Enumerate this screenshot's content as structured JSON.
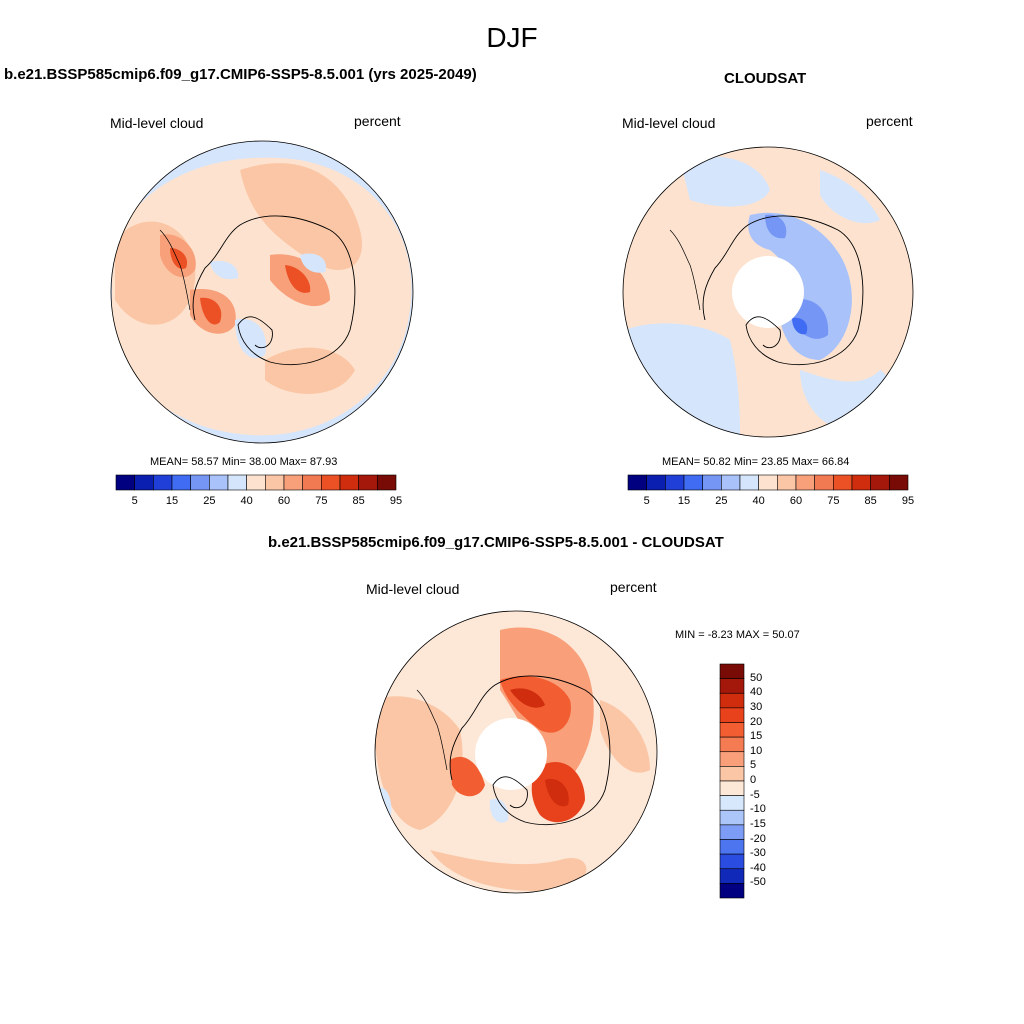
{
  "figure": {
    "title": "DJF"
  },
  "panels": [
    {
      "title": "b.e21.BSSP585cmip6.f09_g17.CMIP6-SSP5-8.5.001 (yrs 2025-2049)",
      "left_label": "Mid-level cloud",
      "right_label": "percent",
      "stats": "MEAN=  58.57  Min=  38.00  Max=  87.93"
    },
    {
      "title": "CLOUDSAT",
      "left_label": "Mid-level cloud",
      "right_label": "percent",
      "stats": "MEAN=  50.82  Min=  23.85  Max=  66.84"
    },
    {
      "title": "b.e21.BSSP585cmip6.f09_g17.CMIP6-SSP5-8.5.001 - CLOUDSAT",
      "left_label": "Mid-level cloud",
      "right_label": "percent",
      "stats": "MIN =  -8.23 MAX =  50.07"
    }
  ],
  "colorbar_abs": {
    "labels": [
      "5",
      "15",
      "25",
      "40",
      "60",
      "75",
      "85",
      "95"
    ],
    "colors": [
      "#000080",
      "#0a1fb0",
      "#1f3fd8",
      "#3f6cf2",
      "#7596f5",
      "#a9c2fa",
      "#d5e5fc",
      "#fde3cf",
      "#fbc6a5",
      "#f7a07a",
      "#f27a52",
      "#ec5125",
      "#cf2d0e",
      "#a3180a",
      "#780b05"
    ]
  },
  "colorbar_diff": {
    "labels": [
      "50",
      "40",
      "30",
      "20",
      "15",
      "10",
      "5",
      "0",
      "-5",
      "-10",
      "-15",
      "-20",
      "-30",
      "-40",
      "-50"
    ],
    "colors": [
      "#780b05",
      "#a3180a",
      "#cf2d0e",
      "#e8421c",
      "#f25d32",
      "#f57c52",
      "#f9a07a",
      "#fbc6a5",
      "#fde7d7",
      "#d8e8fc",
      "#acc6fa",
      "#7d9cf6",
      "#4d75f0",
      "#2a4ce0",
      "#1029b8",
      "#000080"
    ]
  }
}
